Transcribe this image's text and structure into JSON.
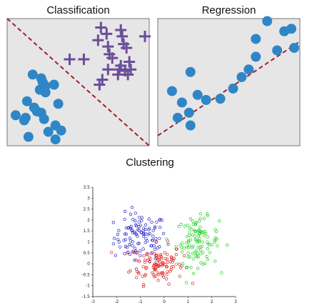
{
  "panels": {
    "classification": {
      "title": "Classification"
    },
    "regression": {
      "title": "Regression"
    },
    "clustering": {
      "title": "Clustering"
    }
  },
  "colors": {
    "panel_bg": "#e6e6e6",
    "marker": "#2f86c6",
    "cross": "#6b4e9a",
    "divider": "#a0202a",
    "cluster_blue": "#2222cc",
    "cluster_red": "#dd2222",
    "cluster_green": "#22cc22"
  },
  "chart_data": [
    {
      "type": "scatter",
      "title": "Classification",
      "xlim": [
        0,
        1
      ],
      "ylim": [
        0,
        1
      ],
      "series": [
        {
          "marker": "circle",
          "points": [
            [
              0.18,
              0.56
            ],
            [
              0.24,
              0.53
            ],
            [
              0.25,
              0.5
            ],
            [
              0.33,
              0.48
            ],
            [
              0.27,
              0.47
            ],
            [
              0.23,
              0.44
            ],
            [
              0.27,
              0.42
            ],
            [
              0.14,
              0.35
            ],
            [
              0.36,
              0.33
            ],
            [
              0.19,
              0.3
            ],
            [
              0.21,
              0.27
            ],
            [
              0.24,
              0.26
            ],
            [
              0.06,
              0.24
            ],
            [
              0.13,
              0.22
            ],
            [
              0.26,
              0.21
            ],
            [
              0.12,
              0.2
            ],
            [
              0.34,
              0.16
            ],
            [
              0.38,
              0.12
            ],
            [
              0.29,
              0.11
            ],
            [
              0.15,
              0.07
            ],
            [
              0.34,
              0.05
            ]
          ]
        },
        {
          "marker": "cross",
          "points": [
            [
              0.66,
              0.93
            ],
            [
              0.8,
              0.91
            ],
            [
              0.7,
              0.88
            ],
            [
              0.81,
              0.86
            ],
            [
              0.97,
              0.86
            ],
            [
              0.64,
              0.83
            ],
            [
              0.82,
              0.8
            ],
            [
              0.71,
              0.78
            ],
            [
              0.84,
              0.77
            ],
            [
              0.72,
              0.72
            ],
            [
              0.74,
              0.69
            ],
            [
              0.86,
              0.66
            ],
            [
              0.44,
              0.68
            ],
            [
              0.54,
              0.68
            ],
            [
              0.8,
              0.63
            ],
            [
              0.71,
              0.6
            ],
            [
              0.79,
              0.6
            ],
            [
              0.83,
              0.59
            ],
            [
              0.87,
              0.6
            ],
            [
              0.78,
              0.56
            ],
            [
              0.85,
              0.56
            ],
            [
              0.67,
              0.52
            ],
            [
              0.65,
              0.48
            ]
          ]
        }
      ],
      "boundary": {
        "from": [
          0,
          1
        ],
        "to": [
          1,
          0
        ]
      }
    },
    {
      "type": "scatter",
      "title": "Regression",
      "xlim": [
        0,
        1
      ],
      "ylim": [
        0,
        1
      ],
      "points": [
        [
          0.77,
          0.98
        ],
        [
          0.89,
          0.9
        ],
        [
          0.94,
          0.92
        ],
        [
          0.69,
          0.84
        ],
        [
          0.84,
          0.75
        ],
        [
          0.96,
          0.77
        ],
        [
          0.69,
          0.7
        ],
        [
          0.64,
          0.6
        ],
        [
          0.59,
          0.54
        ],
        [
          0.23,
          0.58
        ],
        [
          0.53,
          0.45
        ],
        [
          0.1,
          0.43
        ],
        [
          0.28,
          0.4
        ],
        [
          0.44,
          0.37
        ],
        [
          0.17,
          0.34
        ],
        [
          0.34,
          0.36
        ],
        [
          0.22,
          0.26
        ],
        [
          0.14,
          0.22
        ],
        [
          0.23,
          0.16
        ]
      ],
      "fit_line": {
        "from": [
          0,
          0.08
        ],
        "to": [
          1,
          0.82
        ]
      }
    },
    {
      "type": "scatter",
      "title": "Clustering",
      "xlim": [
        -3,
        3
      ],
      "ylim": [
        -1.5,
        3.5
      ],
      "x_ticks": [
        "-3",
        "-2",
        "-1",
        "0",
        "1",
        "2",
        "3"
      ],
      "y_ticks": [
        "3.5",
        "3",
        "2.5",
        "2",
        "1.5",
        "1",
        "0.5",
        "0",
        "-0.5",
        "-1",
        "-1.5"
      ],
      "series": [
        {
          "cluster": "blue",
          "center": [
            -1.0,
            1.2
          ],
          "spread": [
            0.55,
            0.55
          ],
          "count": 110
        },
        {
          "cluster": "red",
          "center": [
            -0.3,
            0.0
          ],
          "spread": [
            0.55,
            0.45
          ],
          "count": 110
        },
        {
          "cluster": "green",
          "center": [
            1.4,
            1.0
          ],
          "spread": [
            0.45,
            0.55
          ],
          "count": 110
        }
      ]
    }
  ]
}
